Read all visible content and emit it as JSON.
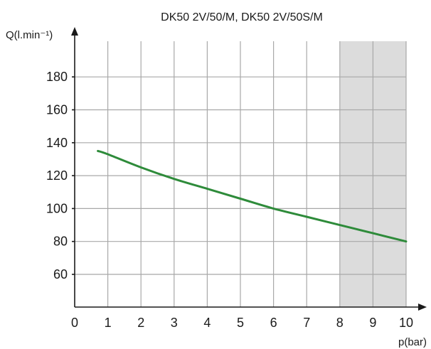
{
  "chart_data": {
    "type": "line",
    "title": "DK50 2V/50/M, DK50 2V/50S/M",
    "ylabel": "Q(l.min⁻¹)",
    "xlabel": "p(bar)",
    "xlim": [
      0,
      10
    ],
    "ylim": [
      40,
      200
    ],
    "x_ticks": [
      0,
      1,
      2,
      3,
      4,
      5,
      6,
      7,
      8,
      9,
      10
    ],
    "y_ticks": [
      60,
      80,
      100,
      120,
      140,
      160,
      180
    ],
    "grid": true,
    "shaded_region": {
      "x_from": 8,
      "x_to": 10,
      "color": "#dcdcdc"
    },
    "series": [
      {
        "color": "#2e8b3a",
        "x": [
          0.7,
          1,
          2,
          3,
          4,
          5,
          6,
          7,
          8,
          9,
          10
        ],
        "y": [
          135,
          133,
          125,
          118,
          112,
          106,
          100,
          95,
          90,
          85,
          80
        ]
      }
    ]
  }
}
